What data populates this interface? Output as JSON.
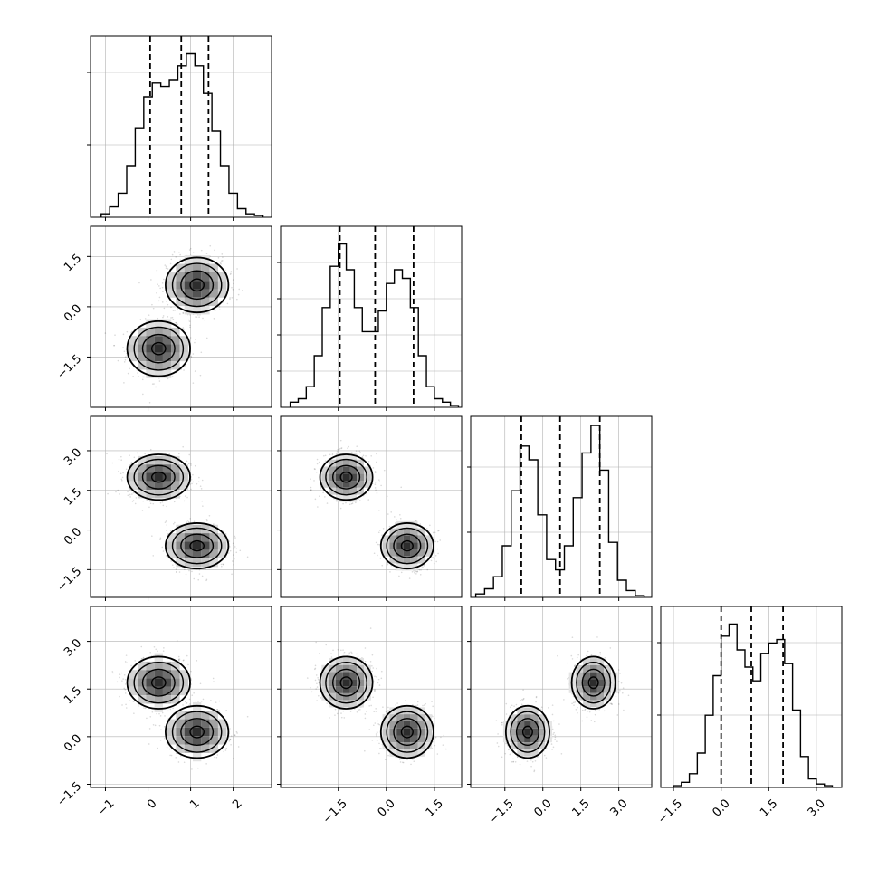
{
  "chart_data": {
    "type": "corner",
    "description_free": true,
    "dims": 4,
    "axes_x": [
      {
        "min": -1.35,
        "max": 2.9,
        "ticks": [
          -1,
          0,
          1,
          2
        ],
        "tick_labels": [
          "−1",
          "0",
          "1",
          "2"
        ]
      },
      {
        "min": -3.3,
        "max": 2.35,
        "ticks": [
          -1.5,
          0.0,
          1.5
        ],
        "tick_labels": [
          "−1.5",
          "0.0",
          "1.5"
        ]
      },
      {
        "min": -2.85,
        "max": 4.3,
        "ticks": [
          -1.5,
          0.0,
          1.5,
          3.0
        ],
        "tick_labels": [
          "−1.5",
          "0.0",
          "1.5",
          "3.0"
        ]
      },
      {
        "min": -1.9,
        "max": 3.8,
        "ticks": [
          -1.5,
          0.0,
          1.5,
          3.0
        ],
        "tick_labels": [
          "−1.5",
          "0.0",
          "1.5",
          "3.0"
        ]
      }
    ],
    "axes_y": [
      null,
      {
        "min": -3.0,
        "max": 2.4,
        "ticks": [
          -1.5,
          0.0,
          1.5
        ],
        "tick_labels": [
          "−1.5",
          "0.0",
          "1.5"
        ]
      },
      {
        "min": -2.55,
        "max": 4.3,
        "ticks": [
          -1.5,
          0.0,
          1.5,
          3.0
        ],
        "tick_labels": [
          "−1.5",
          "0.0",
          "1.5",
          "3.0"
        ]
      },
      {
        "min": -1.6,
        "max": 4.1,
        "ticks": [
          -1.5,
          0.0,
          1.5,
          3.0
        ],
        "tick_labels": [
          "−1.5",
          "0.0",
          "1.5",
          "3.0"
        ]
      }
    ],
    "quantiles": [
      [
        0.05,
        0.78,
        1.42
      ],
      [
        -1.45,
        -0.35,
        0.85
      ],
      [
        -0.85,
        0.68,
        2.25
      ],
      [
        0.0,
        0.95,
        1.95
      ]
    ],
    "histograms": [
      {
        "bin_edges": [
          -1.1,
          -0.9,
          -0.7,
          -0.5,
          -0.3,
          -0.1,
          0.1,
          0.3,
          0.5,
          0.7,
          0.9,
          1.1,
          1.3,
          1.5,
          1.7,
          1.9,
          2.1,
          2.3,
          2.5,
          2.7
        ],
        "counts": [
          2,
          6,
          14,
          30,
          52,
          70,
          78,
          76,
          80,
          88,
          95,
          88,
          72,
          50,
          30,
          14,
          5,
          2,
          1
        ],
        "ymax": 100,
        "ytick_frac": [
          0.4,
          0.8
        ]
      },
      {
        "bin_edges": [
          -3.0,
          -2.75,
          -2.5,
          -2.25,
          -2.0,
          -1.75,
          -1.5,
          -1.25,
          -1.0,
          -0.75,
          -0.5,
          -0.25,
          0.0,
          0.25,
          0.5,
          0.75,
          1.0,
          1.25,
          1.5,
          1.75,
          2.0,
          2.25
        ],
        "counts": [
          3,
          5,
          12,
          30,
          58,
          82,
          95,
          80,
          58,
          44,
          44,
          56,
          72,
          80,
          75,
          58,
          30,
          12,
          5,
          3,
          1
        ],
        "ymax": 100,
        "ytick_frac": [
          0.2,
          0.4,
          0.6,
          0.8
        ]
      },
      {
        "bin_edges": [
          -2.65,
          -2.3,
          -1.95,
          -1.6,
          -1.25,
          -0.9,
          -0.55,
          -0.2,
          0.15,
          0.5,
          0.85,
          1.2,
          1.55,
          1.9,
          2.25,
          2.6,
          2.95,
          3.3,
          3.65,
          4.0
        ],
        "counts": [
          2,
          5,
          12,
          30,
          62,
          88,
          80,
          48,
          22,
          16,
          30,
          58,
          84,
          100,
          74,
          32,
          10,
          4,
          1
        ],
        "ymax": 100,
        "ytick_frac": [
          0.36,
          0.72
        ]
      },
      {
        "bin_edges": [
          -1.5,
          -1.25,
          -1.0,
          -0.75,
          -0.5,
          -0.25,
          0.0,
          0.25,
          0.5,
          0.75,
          1.0,
          1.25,
          1.5,
          1.75,
          2.0,
          2.25,
          2.5,
          2.75,
          3.0,
          3.25,
          3.5
        ],
        "counts": [
          1,
          3,
          8,
          20,
          42,
          65,
          88,
          95,
          80,
          70,
          62,
          78,
          84,
          86,
          72,
          45,
          18,
          5,
          2,
          1
        ],
        "ymax": 100,
        "ytick_frac": [
          0.4,
          0.8
        ]
      }
    ],
    "modes": {
      "a": [
        0.25,
        -1.25,
        2.0,
        1.7
      ],
      "b": [
        1.15,
        0.65,
        -0.6,
        0.15
      ]
    },
    "sigmas": [
      0.36,
      0.4,
      0.42,
      0.4
    ],
    "grid": true,
    "colors": {
      "line": "#000000",
      "grid": "#b0b0b0",
      "scatter": "#000000",
      "fill": "#000000"
    }
  }
}
